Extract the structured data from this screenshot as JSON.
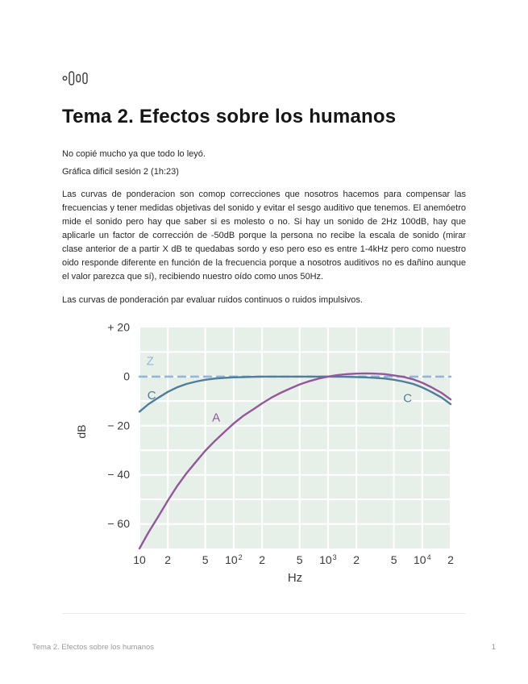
{
  "page": {
    "icon": "audio-levels-icon",
    "title": "Tema 2. Efectos sobre los humanos",
    "paragraphs": [
      "No copié mucho ya que todo lo leyó.",
      "Gráfica dificil sesión 2 (1h:23)",
      "Las curvas de ponderacion son comop correcciones que nosotros hacemos para compensar las frecuencias y tener medidas objetivas del sonido y evitar el sesgo auditivo que tenemos. El anemóetro mide el sonido pero hay que saber si es molesto o no. Si hay un sonido de 2Hz 100dB, hay que aplicarle un factor de corrección de -50dB porque la persona no recibe la escala de sonido (mirar clase anterior de a partir X dB te quedabas sordo y eso pero eso es entre 1-4kHz pero como nuestro oido responde diferente en función de la frecuencia porque a nosotros auditivos no es dañino aunque el valor parezca que sí), recibiendo nuestro oído como unos 50Hz.",
      "Las curvas de ponderación par evaluar ruidos continuos o ruidos impulsivos."
    ],
    "footer": {
      "left": "Tema 2. Efectos sobre los humanos",
      "page_number": "1"
    }
  },
  "chart_data": {
    "type": "line",
    "title": "",
    "xlabel": "Hz",
    "ylabel": "dB",
    "x_scale": "log",
    "x_range": [
      10,
      20000
    ],
    "y_range": [
      -70,
      20
    ],
    "grid": "on",
    "grid_y_step": 10,
    "plot_bg": "#e7efe9",
    "grid_color": "#ffffff",
    "tick_color": "#3a3a3a",
    "x_ticks": [
      {
        "f": 10,
        "label": "10"
      },
      {
        "f": 20,
        "label": "2"
      },
      {
        "f": 50,
        "label": "5"
      },
      {
        "f": 100,
        "label": "10",
        "sup": "2"
      },
      {
        "f": 200,
        "label": "2"
      },
      {
        "f": 500,
        "label": "5"
      },
      {
        "f": 1000,
        "label": "10",
        "sup": "3"
      },
      {
        "f": 2000,
        "label": "2"
      },
      {
        "f": 5000,
        "label": "5"
      },
      {
        "f": 10000,
        "label": "10",
        "sup": "4"
      },
      {
        "f": 20000,
        "label": "2"
      }
    ],
    "y_ticks": [
      {
        "v": 20,
        "label": "+ 20"
      },
      {
        "v": 0,
        "label": "0"
      },
      {
        "v": -20,
        "label": "− 20"
      },
      {
        "v": -40,
        "label": "− 40"
      },
      {
        "v": -60,
        "label": "− 60"
      }
    ],
    "series": [
      {
        "name": "Z",
        "style": "dashed",
        "color": "#92b7d9",
        "points": [
          [
            10,
            0
          ],
          [
            20000,
            0
          ]
        ]
      },
      {
        "name": "C",
        "style": "solid",
        "color": "#4f7d9a",
        "points": [
          [
            10,
            -14.3
          ],
          [
            12.5,
            -11.2
          ],
          [
            16,
            -8.5
          ],
          [
            20,
            -6.2
          ],
          [
            25,
            -4.4
          ],
          [
            31.5,
            -3.0
          ],
          [
            40,
            -2.0
          ],
          [
            50,
            -1.3
          ],
          [
            63,
            -0.8
          ],
          [
            80,
            -0.5
          ],
          [
            100,
            -0.3
          ],
          [
            125,
            -0.2
          ],
          [
            160,
            -0.1
          ],
          [
            200,
            0
          ],
          [
            250,
            0
          ],
          [
            315,
            0
          ],
          [
            400,
            0
          ],
          [
            500,
            0
          ],
          [
            630,
            0
          ],
          [
            800,
            0
          ],
          [
            1000,
            0
          ],
          [
            1250,
            0
          ],
          [
            1600,
            -0.1
          ],
          [
            2000,
            -0.2
          ],
          [
            2500,
            -0.3
          ],
          [
            3150,
            -0.5
          ],
          [
            4000,
            -0.8
          ],
          [
            5000,
            -1.3
          ],
          [
            6300,
            -2.0
          ],
          [
            8000,
            -3.0
          ],
          [
            10000,
            -4.4
          ],
          [
            12500,
            -6.2
          ],
          [
            16000,
            -8.5
          ],
          [
            20000,
            -11.2
          ]
        ]
      },
      {
        "name": "A",
        "style": "solid",
        "color": "#93589c",
        "points": [
          [
            10,
            -70
          ],
          [
            12.5,
            -63.4
          ],
          [
            16,
            -56.7
          ],
          [
            20,
            -50.5
          ],
          [
            25,
            -44.7
          ],
          [
            31.5,
            -39.4
          ],
          [
            40,
            -34.6
          ],
          [
            50,
            -30.2
          ],
          [
            63,
            -26.2
          ],
          [
            80,
            -22.5
          ],
          [
            100,
            -19.1
          ],
          [
            125,
            -16.1
          ],
          [
            160,
            -13.4
          ],
          [
            200,
            -10.9
          ],
          [
            250,
            -8.6
          ],
          [
            315,
            -6.6
          ],
          [
            400,
            -4.8
          ],
          [
            500,
            -3.2
          ],
          [
            630,
            -1.9
          ],
          [
            800,
            -0.8
          ],
          [
            1000,
            0
          ],
          [
            1250,
            0.6
          ],
          [
            1600,
            1.0
          ],
          [
            2000,
            1.2
          ],
          [
            2500,
            1.3
          ],
          [
            3150,
            1.2
          ],
          [
            4000,
            1.0
          ],
          [
            5000,
            0.5
          ],
          [
            6300,
            -0.1
          ],
          [
            8000,
            -1.1
          ],
          [
            10000,
            -2.5
          ],
          [
            12500,
            -4.3
          ],
          [
            16000,
            -6.6
          ],
          [
            20000,
            -9.3
          ]
        ]
      }
    ],
    "annotations": [
      {
        "text": "Z",
        "f": 13,
        "db": 6,
        "color": "#92b7d9"
      },
      {
        "text": "C",
        "f": 13.5,
        "db": -8,
        "color": "#4f7d9a"
      },
      {
        "text": "A",
        "f": 65,
        "db": -17,
        "color": "#93589c"
      },
      {
        "text": "C",
        "f": 7000,
        "db": -9,
        "color": "#4f7d9a"
      }
    ]
  }
}
